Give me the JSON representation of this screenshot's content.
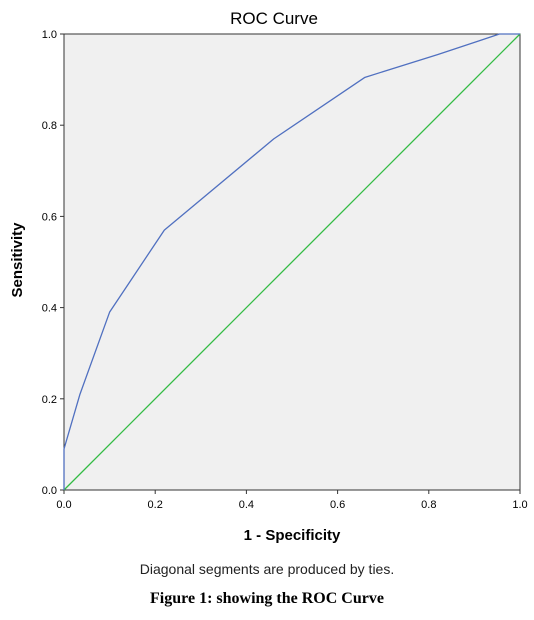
{
  "chart_data": {
    "type": "line",
    "title": "ROC Curve",
    "xlabel": "1 - Specificity",
    "ylabel": "Sensitivity",
    "xlim": [
      0,
      1
    ],
    "ylim": [
      0,
      1
    ],
    "x_ticks": [
      "0.0",
      "0.2",
      "0.4",
      "0.6",
      "0.8",
      "1.0"
    ],
    "y_ticks": [
      "0.0",
      "0.2",
      "0.4",
      "0.6",
      "0.8",
      "1.0"
    ],
    "grid": false,
    "plot_background": "#f0f0f0",
    "series": [
      {
        "color": "#5070c0",
        "points": [
          [
            0.0,
            0.0
          ],
          [
            0.0,
            0.09
          ],
          [
            0.035,
            0.21
          ],
          [
            0.1,
            0.39
          ],
          [
            0.22,
            0.57
          ],
          [
            0.46,
            0.77
          ],
          [
            0.66,
            0.905
          ],
          [
            0.82,
            0.955
          ],
          [
            0.91,
            0.985
          ],
          [
            0.955,
            1.0
          ],
          [
            1.0,
            1.0
          ]
        ]
      },
      {
        "color": "#33bb44",
        "points": [
          [
            0.0,
            0.0
          ],
          [
            1.0,
            1.0
          ]
        ]
      }
    ]
  },
  "footnote": "Diagonal segments are produced by ties.",
  "caption": "Figure 1: showing the ROC Curve"
}
